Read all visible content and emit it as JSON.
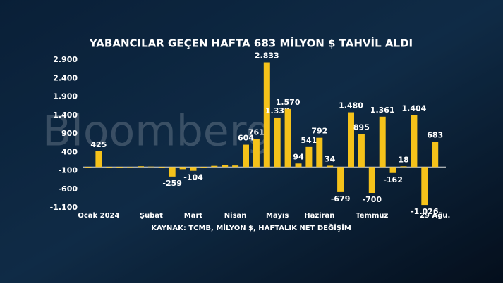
{
  "chart_data": {
    "type": "bar",
    "title": "YABANCILAR GEÇEN HAFTA 683 MİLYON $ TAHVİL ALDI",
    "source": "KAYNAK: TCMB, MİLYON $, HAFTALIK NET DEĞİŞİM",
    "watermark": "Bloomberg",
    "categories": [
      null,
      "Ocak 2024",
      null,
      null,
      null,
      null,
      "Şubat",
      null,
      null,
      null,
      "Mart",
      null,
      null,
      null,
      "Nisan",
      null,
      null,
      null,
      "Mayıs",
      null,
      null,
      null,
      "Haziran",
      null,
      null,
      null,
      null,
      "Temmuz",
      null,
      null,
      null,
      null,
      null,
      "29 Ağu."
    ],
    "values": [
      -30,
      425,
      -20,
      -30,
      -10,
      20,
      10,
      -30,
      -259,
      -60,
      -104,
      -20,
      30,
      60,
      40,
      604,
      761,
      2833,
      1339,
      1570,
      94,
      541,
      792,
      34,
      -679,
      1480,
      895,
      -700,
      1361,
      -162,
      18,
      1404,
      -1026,
      683
    ],
    "value_labels": [
      null,
      "425",
      null,
      null,
      null,
      null,
      null,
      null,
      "-259",
      null,
      "-104",
      null,
      null,
      null,
      null,
      "604",
      "761",
      "2.833",
      "1.339",
      "1.570",
      "94",
      "541",
      "792",
      "34",
      "-679",
      "1.480",
      "895",
      "-700",
      "1.361",
      "-162",
      "18",
      "1.404",
      "-1.026",
      "683"
    ],
    "color": "#f5c21a",
    "ylim": [
      -1100,
      2900
    ],
    "yticks": [
      {
        "value": 2900,
        "label": "2.900"
      },
      {
        "value": 2400,
        "label": "2.400"
      },
      {
        "value": 1900,
        "label": "1.900"
      },
      {
        "value": 1400,
        "label": "1.400"
      },
      900,
      400,
      -100,
      -600,
      {
        "value": -1100,
        "label": "-1.100"
      }
    ]
  }
}
